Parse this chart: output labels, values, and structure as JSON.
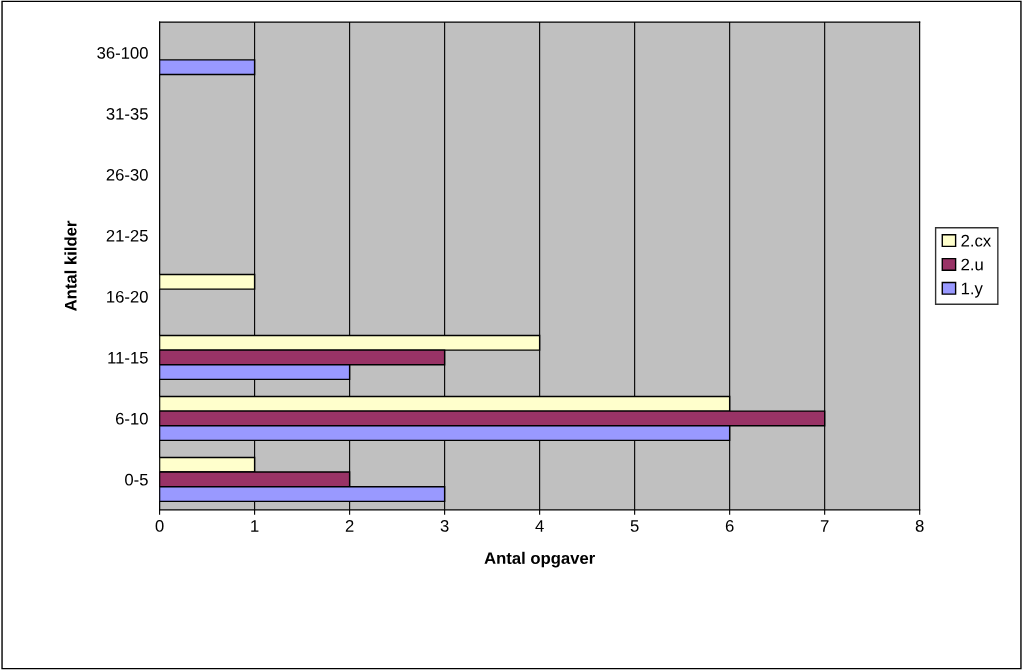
{
  "chart_data": {
    "type": "bar",
    "orientation": "horizontal",
    "xlabel": "Antal opgaver",
    "ylabel": "Antal kilder",
    "categories": [
      "36-100",
      "31-35",
      "26-30",
      "21-25",
      "16-20",
      "11-15",
      "6-10",
      "0-5"
    ],
    "series": [
      {
        "name": "2.cx",
        "color": "#ffffcc",
        "values": [
          0,
          0,
          0,
          0,
          1,
          4,
          6,
          1
        ]
      },
      {
        "name": "2.u",
        "color": "#993366",
        "values": [
          0,
          0,
          0,
          0,
          0,
          3,
          7,
          2
        ]
      },
      {
        "name": "1.y",
        "color": "#9999ff",
        "values": [
          1,
          0,
          0,
          0,
          0,
          2,
          6,
          3
        ]
      }
    ],
    "xlim": [
      0,
      8
    ],
    "xticks": [
      0,
      1,
      2,
      3,
      4,
      5,
      6,
      7,
      8
    ],
    "grid": "x",
    "legend": "right"
  }
}
